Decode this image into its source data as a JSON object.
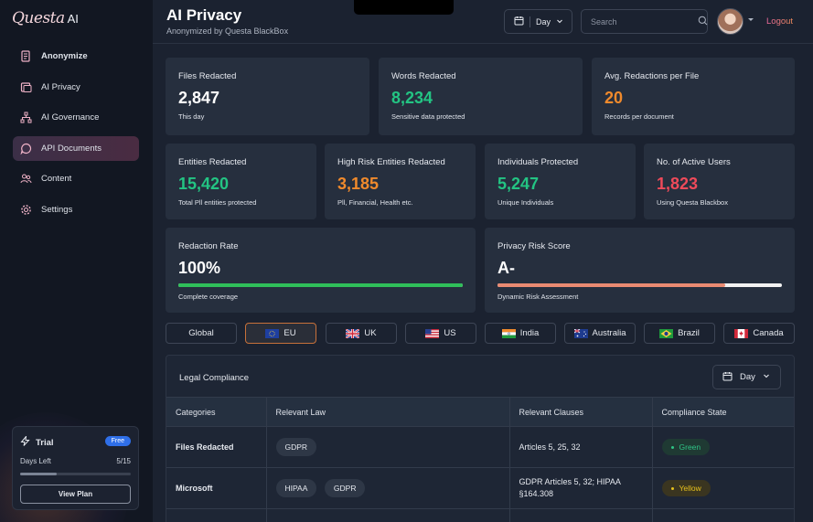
{
  "brand": {
    "script": "Questa",
    "ai": "AI"
  },
  "sidebar": {
    "items": [
      {
        "label": "Anonymize",
        "icon": "document-icon"
      },
      {
        "label": "AI Privacy",
        "icon": "shield-page-icon"
      },
      {
        "label": "AI Governance",
        "icon": "hierarchy-icon"
      },
      {
        "label": "API Documents",
        "icon": "chat-bubble-icon"
      },
      {
        "label": "Content",
        "icon": "users-icon"
      },
      {
        "label": "Settings",
        "icon": "gear-icon"
      }
    ],
    "trial": {
      "label": "Trial",
      "badge": "Free",
      "days_label": "Days Left",
      "days_value": "5/15",
      "progress": 0.33,
      "button": "View Plan"
    }
  },
  "header": {
    "title": "AI Privacy",
    "subtitle": "Anonymized by Questa BlackBox",
    "period": "Day",
    "search_placeholder": "Search",
    "logout": "Logout"
  },
  "stats": {
    "files": {
      "label": "Files Redacted",
      "value": "2,847",
      "sub": "This day"
    },
    "words": {
      "label": "Words Redacted",
      "value": "8,234",
      "sub": "Sensitive data protected"
    },
    "avg": {
      "label": "Avg. Redactions per File",
      "value": "20",
      "sub": "Records per document"
    },
    "entities": {
      "label": "Entities Redacted",
      "value": "15,420",
      "sub": "Total Pll entities protected"
    },
    "high_risk": {
      "label": "High Risk Entities Redacted",
      "value": "3,185",
      "sub": "Pll, Financial, Health etc."
    },
    "individuals": {
      "label": "Individuals Protected",
      "value": "5,247",
      "sub": "Unique Individuals"
    },
    "users": {
      "label": "No. of Active Users",
      "value": "1,823",
      "sub": "Using Questa Blackbox"
    },
    "redaction_rate": {
      "label": "Redaction Rate",
      "value": "100%",
      "sub": "Complete coverage",
      "progress": 1.0,
      "color": "#2fbf5a"
    },
    "risk_score": {
      "label": "Privacy Risk Score",
      "value": "A-",
      "sub": "Dynamic Risk Assessment",
      "progress": 0.8,
      "color": "#e98a72"
    }
  },
  "regions": [
    {
      "label": "Global",
      "flag": ""
    },
    {
      "label": "EU",
      "flag": "eu-flag-icon"
    },
    {
      "label": "UK",
      "flag": "uk-flag-icon"
    },
    {
      "label": "US",
      "flag": "us-flag-icon"
    },
    {
      "label": "India",
      "flag": "india-flag-icon"
    },
    {
      "label": "Australia",
      "flag": "australia-flag-icon"
    },
    {
      "label": "Brazil",
      "flag": "brazil-flag-icon"
    },
    {
      "label": "Canada",
      "flag": "canada-flag-icon"
    }
  ],
  "active_region": "EU",
  "compliance": {
    "title": "Legal Compliance",
    "period": "Day",
    "columns": [
      "Categories",
      "Relevant Law",
      "Relevant Clauses",
      "Compliance State"
    ],
    "rows": [
      {
        "category": "Files Redacted",
        "laws": [
          "GDPR"
        ],
        "clauses": "Articles 5, 25, 32",
        "state": "Green"
      },
      {
        "category": "Microsoft",
        "laws": [
          "HIPAA",
          "GDPR"
        ],
        "clauses": "GDPR Articles 5, 32; HIPAA §164.308",
        "state": "Yellow"
      }
    ]
  },
  "colors": {
    "accent_green": "#23c483",
    "accent_orange": "#f08a2c",
    "accent_red": "#ef4a5a",
    "active_region_border": "#c7713a"
  }
}
